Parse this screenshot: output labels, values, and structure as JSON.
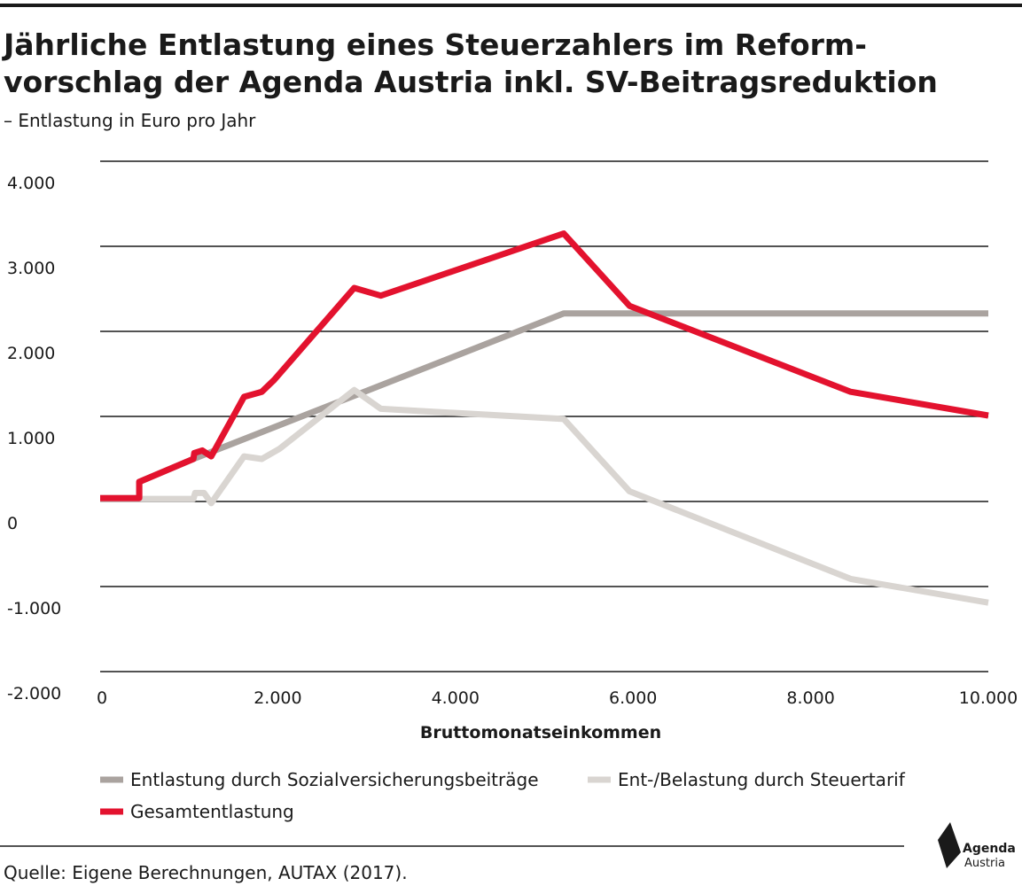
{
  "chart_data": {
    "type": "line",
    "title": [
      "Jährliche Entlastung eines Steuerzahlers im Reform-",
      "vorschlag der Agenda Austria  inkl. SV-Beitragsreduktion"
    ],
    "subtitle": "– Entlastung in Euro pro Jahr",
    "xlabel": "Bruttomonatseinkommen",
    "source": "Quelle: Eigene Berechnungen,  AUTAX (2017).",
    "logo": [
      "Agenda",
      "Austria"
    ],
    "xlim": [
      0,
      10000
    ],
    "ylim": [
      -2000,
      4000
    ],
    "xticks": [
      0,
      {
        "value": 2000,
        "label": "2.000"
      },
      {
        "value": 4000,
        "label": "4.000"
      },
      {
        "value": 6000,
        "label": "6.000"
      },
      {
        "value": 8000,
        "label": "8.000"
      },
      {
        "value": 10000,
        "label": "10.000"
      }
    ],
    "yticks": [
      {
        "value": 4000,
        "label": "4.000"
      },
      {
        "value": 3000,
        "label": "3.000"
      },
      {
        "value": 2000,
        "label": "2.000"
      },
      {
        "value": 1000,
        "label": "1.000"
      },
      0,
      {
        "value": -1000,
        "label": "-1.000"
      },
      {
        "value": -2000,
        "label": "-2.000"
      }
    ],
    "grid": true,
    "series": [
      {
        "name": "Entlastung durch Sozialversicherungsbeiträge",
        "color": "#aaa39f",
        "x": [
          0,
          440,
          440,
          1050,
          5220,
          10000
        ],
        "values": [
          40,
          40,
          230,
          500,
          2210,
          2210
        ]
      },
      {
        "name": "Ent-/Belastung durch Steuertarif",
        "color": "#d9d5d1",
        "x": [
          0,
          1050,
          1070,
          1170,
          1250,
          1620,
          1820,
          2020,
          2860,
          3160,
          5220,
          5960,
          8450,
          10000
        ],
        "values": [
          30,
          30,
          100,
          100,
          -20,
          530,
          500,
          620,
          1310,
          1090,
          970,
          120,
          -910,
          -1190
        ]
      },
      {
        "name": "Gesamtentlastung",
        "color": "#e3122e",
        "x": [
          0,
          440,
          440,
          1050,
          1060,
          1150,
          1250,
          1620,
          1820,
          1960,
          2860,
          3160,
          5220,
          5960,
          8450,
          10000
        ],
        "values": [
          40,
          40,
          230,
          500,
          570,
          600,
          530,
          1230,
          1290,
          1430,
          2510,
          2420,
          3150,
          2300,
          1290,
          1010
        ]
      }
    ]
  }
}
